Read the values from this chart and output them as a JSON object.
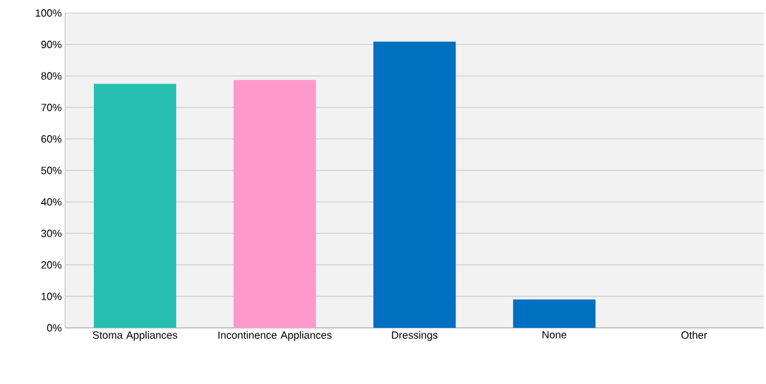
{
  "chart_data": {
    "type": "bar",
    "categories": [
      "Stoma Appliances",
      "Incontinence Appliances",
      "Dressings",
      "None",
      "Other"
    ],
    "values": [
      77.5,
      78.8,
      90.9,
      9,
      0
    ],
    "colors": [
      "#26bfb0",
      "#ff99cc",
      "#0070c0",
      "#0070c0",
      "#0070c0"
    ],
    "ylim": [
      0,
      100
    ],
    "yticks": [
      {
        "value": 0,
        "label": "0%"
      },
      {
        "value": 10,
        "label": "10%"
      },
      {
        "value": 20,
        "label": "20%"
      },
      {
        "value": 30,
        "label": "30%"
      },
      {
        "value": 40,
        "label": "40%"
      },
      {
        "value": 50,
        "label": "50%"
      },
      {
        "value": 60,
        "label": "60%"
      },
      {
        "value": 70,
        "label": "70%"
      },
      {
        "value": 80,
        "label": "80%"
      },
      {
        "value": 90,
        "label": "90%"
      },
      {
        "value": 100,
        "label": "100%"
      }
    ],
    "grid": "y"
  }
}
